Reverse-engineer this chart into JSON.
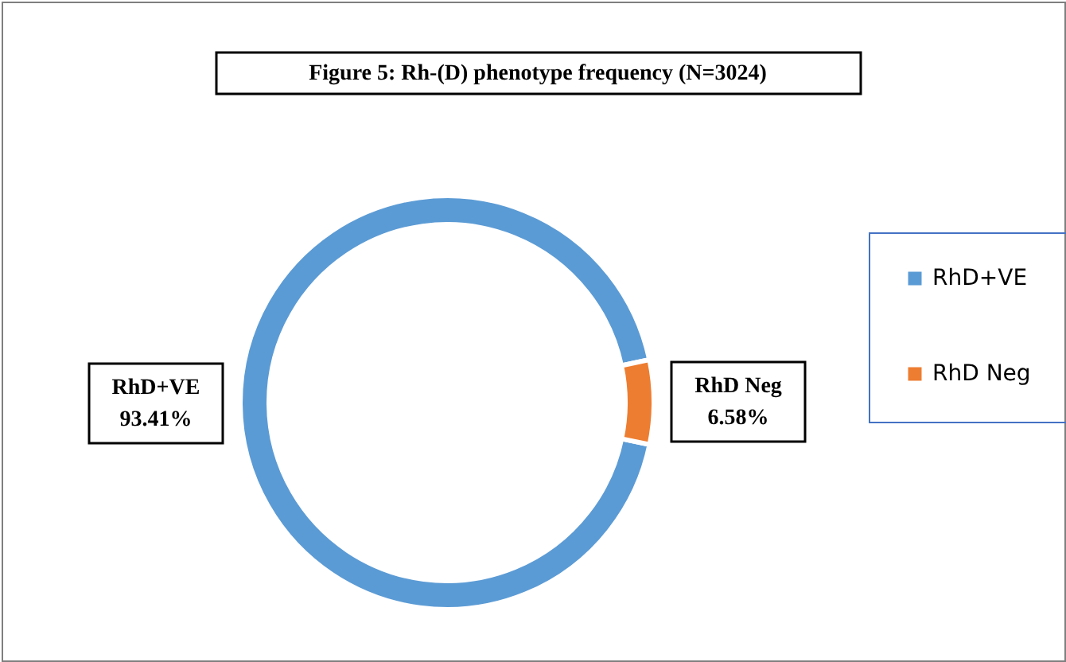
{
  "chart_data": {
    "type": "donut",
    "title": "Figure 5:  Rh-(D) phenotype frequency (N=3024)",
    "categories": [
      "RhD+VE",
      "RhD Neg"
    ],
    "values": [
      93.41,
      6.58
    ],
    "colors": [
      "#5b9bd5",
      "#ed7d31"
    ],
    "value_labels": [
      "93.41%",
      "6.58%"
    ],
    "legend": "right"
  }
}
